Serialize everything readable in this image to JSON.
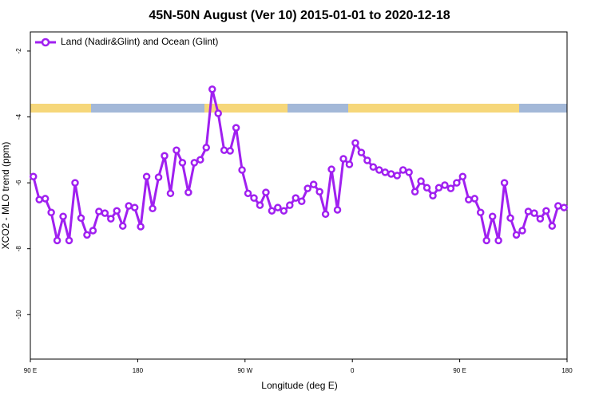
{
  "chart_data": {
    "type": "line",
    "title": "45N-50N August (Ver 10)   2015-01-01 to 2020-12-18",
    "x_label": "Longitude (deg E)",
    "y_label": "XCO2 - MLO trend (ppm)",
    "xlim": [
      90,
      540
    ],
    "ylim": [
      -11.35,
      -1.42
    ],
    "xticks": [
      {
        "value": 90,
        "label": "90 E"
      },
      {
        "value": 180,
        "label": "180"
      },
      {
        "value": 270,
        "label": "90 W"
      },
      {
        "value": 360,
        "label": "0"
      },
      {
        "value": 450,
        "label": "90 E"
      },
      {
        "value": 540,
        "label": "180"
      }
    ],
    "yticks": [
      -2,
      -4,
      -6,
      -8,
      -10
    ],
    "legend_position": "upper left",
    "x": [
      92.5,
      97.5,
      102.5,
      107.5,
      112.5,
      117.5,
      122.5,
      127.5,
      132.5,
      137.5,
      142.5,
      147.5,
      152.5,
      157.5,
      162.5,
      167.5,
      172.5,
      177.5,
      182.5,
      187.5,
      192.5,
      197.5,
      202.5,
      207.5,
      212.5,
      217.5,
      222.5,
      227.5,
      232.5,
      237.5,
      242.5,
      247.5,
      252.5,
      257.5,
      262.5,
      267.5,
      272.5,
      277.5,
      282.5,
      287.5,
      292.5,
      297.5,
      302.5,
      307.5,
      312.5,
      317.5,
      322.5,
      327.5,
      332.5,
      337.5,
      342.5,
      347.5,
      352.5,
      357.5,
      362.5,
      367.5,
      372.5,
      377.5,
      382.5,
      387.5,
      392.5,
      397.5,
      402.5,
      407.5,
      412.5,
      417.5,
      422.5,
      427.5,
      432.5,
      437.5,
      442.5,
      447.5,
      452.5,
      457.5,
      462.5,
      467.5,
      472.5,
      477.5,
      482.5,
      487.5,
      492.5,
      497.5,
      502.5,
      507.5,
      512.5,
      517.5,
      522.5,
      527.5,
      532.5,
      537.5
    ],
    "series": [
      {
        "name": "Land (Nadir&Glint) and Ocean (Glint)",
        "color": "#a020f0",
        "values": [
          -5.81,
          -6.51,
          -6.48,
          -6.9,
          -7.75,
          -7.02,
          -7.75,
          -6.0,
          -7.07,
          -7.58,
          -7.45,
          -6.87,
          -6.92,
          -7.09,
          -6.85,
          -7.31,
          -6.7,
          -6.75,
          -7.33,
          -5.81,
          -6.78,
          -5.83,
          -5.18,
          -6.32,
          -5.01,
          -5.39,
          -6.29,
          -5.39,
          -5.3,
          -4.93,
          -3.16,
          -3.89,
          -5.01,
          -5.03,
          -4.33,
          -5.61,
          -6.32,
          -6.46,
          -6.68,
          -6.29,
          -6.85,
          -6.75,
          -6.85,
          -6.68,
          -6.46,
          -6.56,
          -6.17,
          -6.05,
          -6.27,
          -6.95,
          -5.59,
          -6.82,
          -5.27,
          -5.44,
          -4.79,
          -5.08,
          -5.32,
          -5.52,
          -5.61,
          -5.68,
          -5.73,
          -5.78,
          -5.61,
          -5.68,
          -6.27,
          -5.95,
          -6.15,
          -6.39,
          -6.15,
          -6.07,
          -6.17,
          -6.0,
          -5.81,
          -6.51,
          -6.48,
          -6.9,
          -7.75,
          -7.02,
          -7.75,
          -6.0,
          -7.07,
          -7.58,
          -7.45,
          -6.87,
          -6.92,
          -7.09,
          -6.85,
          -7.31,
          -6.7,
          -6.75
        ]
      }
    ]
  }
}
